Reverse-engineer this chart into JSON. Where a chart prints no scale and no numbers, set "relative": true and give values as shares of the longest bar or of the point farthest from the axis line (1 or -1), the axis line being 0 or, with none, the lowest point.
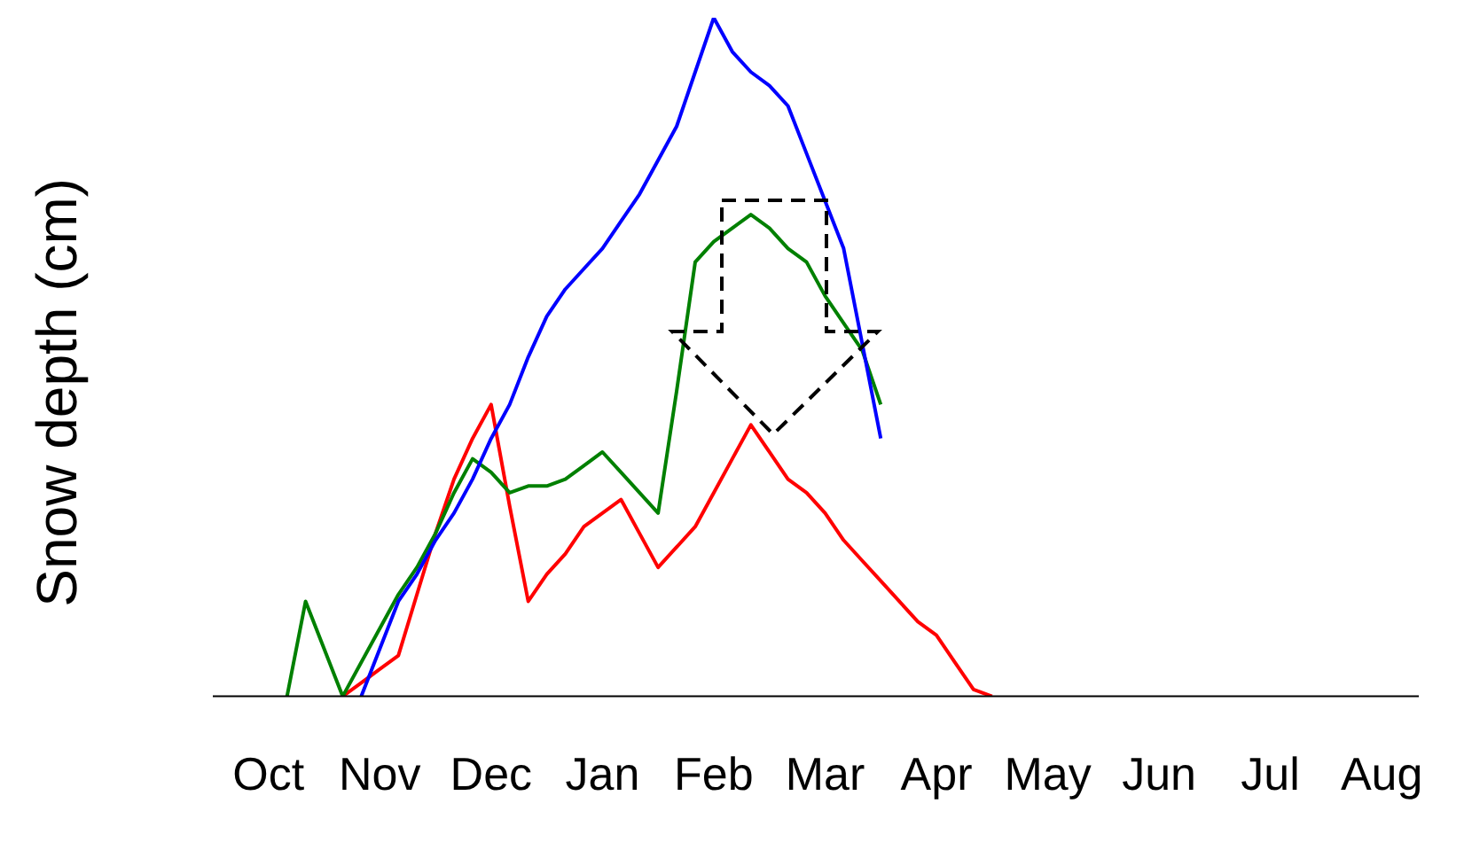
{
  "chart_data": {
    "type": "line",
    "ylabel": "Snow depth (cm)",
    "relative": true,
    "categories": [
      null,
      null,
      null,
      "Oct",
      null,
      null,
      null,
      null,
      null,
      "Nov",
      null,
      null,
      null,
      null,
      null,
      "Dec",
      null,
      null,
      null,
      null,
      null,
      "Jan",
      null,
      null,
      null,
      null,
      null,
      "Feb",
      null,
      null,
      null,
      null,
      null,
      "Mar",
      null,
      null,
      null,
      null,
      null,
      "Apr",
      null,
      null,
      null,
      null,
      null,
      "May",
      null,
      null,
      null,
      null,
      null,
      "Jun",
      null,
      null,
      null,
      null,
      null,
      "Jul",
      null,
      null,
      null,
      null,
      null,
      "Aug",
      null,
      null
    ],
    "series": [
      {
        "color": "#0000ff",
        "values": [
          null,
          null,
          null,
          null,
          null,
          null,
          null,
          null,
          0,
          0.07,
          0.14,
          0.18,
          0.23,
          0.27,
          0.32,
          0.38,
          0.43,
          0.5,
          0.56,
          0.6,
          0.63,
          0.66,
          0.7,
          0.74,
          0.79,
          0.84,
          0.92,
          1,
          0.95,
          0.92,
          0.9,
          0.87,
          0.8,
          0.73,
          0.66,
          0.52,
          0.38,
          null,
          null,
          null,
          null,
          null,
          null,
          null,
          null,
          null,
          null,
          null,
          null,
          null,
          null,
          null,
          null,
          null,
          null,
          null,
          null,
          null,
          null,
          null,
          null,
          null,
          null,
          null,
          null,
          null
        ]
      },
      {
        "color": "#008000",
        "values": [
          null,
          null,
          null,
          null,
          0,
          0.14,
          0.07,
          0,
          0.05,
          0.1,
          0.15,
          0.19,
          0.24,
          0.3,
          0.35,
          0.33,
          0.3,
          0.31,
          0.31,
          0.32,
          0.34,
          0.36,
          0.33,
          0.3,
          0.27,
          0.45,
          0.64,
          0.67,
          0.69,
          0.71,
          0.69,
          0.66,
          0.64,
          0.59,
          0.55,
          0.51,
          0.43,
          null,
          null,
          null,
          null,
          null,
          null,
          null,
          null,
          null,
          null,
          null,
          null,
          null,
          null,
          null,
          null,
          null,
          null,
          null,
          null,
          null,
          null,
          null,
          null,
          null,
          null,
          null,
          null,
          null
        ]
      },
      {
        "color": "#ff0000",
        "values": [
          null,
          null,
          null,
          null,
          null,
          null,
          null,
          0,
          0.02,
          0.04,
          0.06,
          0.15,
          0.24,
          0.32,
          0.38,
          0.43,
          0.28,
          0.14,
          0.18,
          0.21,
          0.25,
          0.27,
          0.29,
          0.24,
          0.19,
          0.22,
          0.25,
          0.3,
          0.35,
          0.4,
          0.36,
          0.32,
          0.3,
          0.27,
          0.23,
          0.2,
          0.17,
          0.14,
          0.11,
          0.09,
          0.05,
          0.01,
          0,
          null,
          null,
          null,
          null,
          null,
          null,
          null,
          null,
          null,
          null,
          null,
          null,
          null,
          null,
          null,
          null,
          null,
          null,
          null,
          null,
          null,
          null,
          null
        ]
      }
    ],
    "grid": false,
    "legend": false,
    "marker": "none",
    "line_style": "solid"
  }
}
